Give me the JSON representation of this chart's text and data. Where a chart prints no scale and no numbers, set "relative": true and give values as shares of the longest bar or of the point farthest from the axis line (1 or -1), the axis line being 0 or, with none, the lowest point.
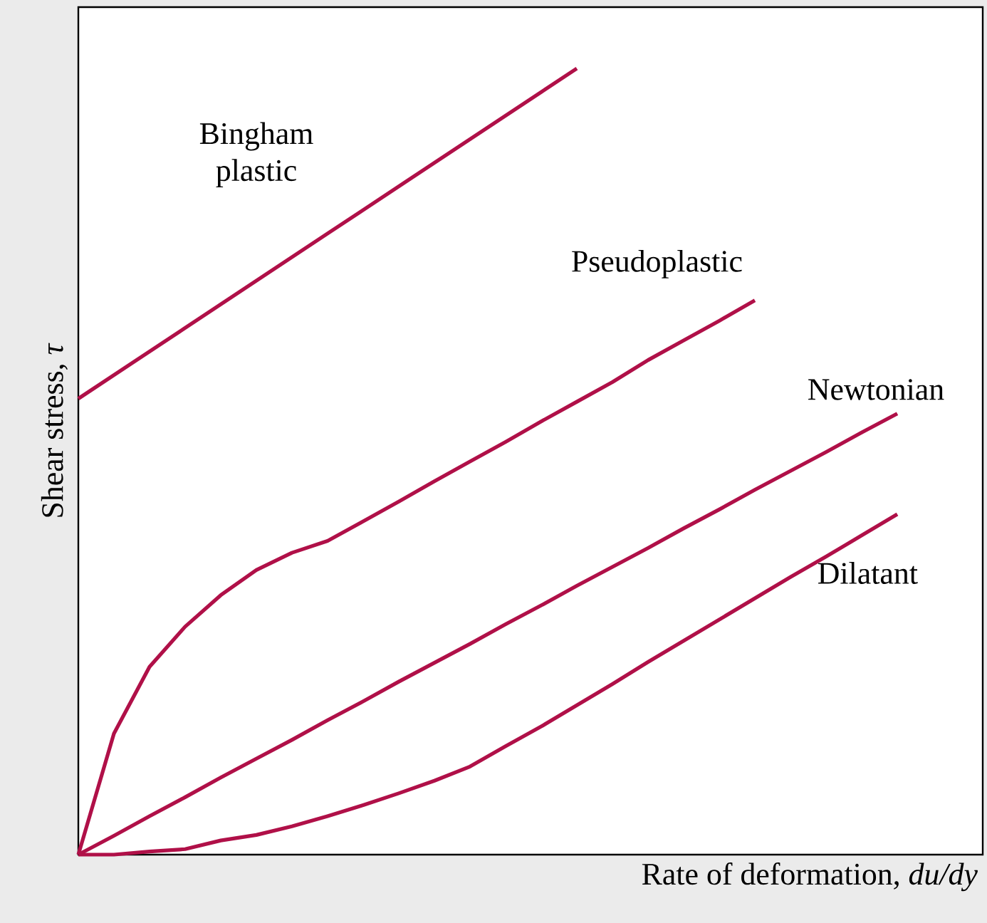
{
  "chart_data": {
    "type": "line",
    "relative": true,
    "xlabel": "Rate of deformation, *du/dy*",
    "ylabel": "Shear stress, *τ*",
    "categories": [
      null,
      null,
      null,
      null,
      null,
      null,
      null,
      null,
      null,
      null,
      null,
      null,
      null,
      null,
      null,
      null,
      null,
      null,
      null,
      null,
      null,
      null,
      null,
      null,
      null,
      null
    ],
    "series": [
      {
        "name": "Bingham plastic",
        "color": "#b01048",
        "values": [
          0.58,
          0.61,
          0.64,
          0.67,
          0.7,
          0.73,
          0.76,
          0.79,
          0.82,
          0.85,
          0.88,
          0.91,
          0.94,
          0.97,
          1.0,
          null,
          null,
          null,
          null,
          null,
          null,
          null,
          null,
          null,
          null,
          null
        ]
      },
      {
        "name": "Pseudoplastic",
        "color": "#b01048",
        "values": [
          0,
          0.154,
          0.239,
          0.29,
          0.33,
          0.362,
          0.384,
          0.399,
          0.424,
          0.449,
          0.475,
          0.5,
          0.525,
          0.551,
          0.576,
          0.601,
          0.629,
          0.654,
          0.679,
          0.705,
          null,
          null,
          null,
          null,
          null,
          null
        ]
      },
      {
        "name": "Newtonian",
        "color": "#b01048",
        "values": [
          0,
          0.024,
          0.049,
          0.073,
          0.098,
          0.122,
          0.146,
          0.171,
          0.195,
          0.22,
          0.244,
          0.268,
          0.293,
          0.317,
          0.342,
          0.366,
          0.39,
          0.415,
          0.439,
          0.464,
          0.488,
          0.512,
          0.537,
          0.561,
          null,
          null
        ]
      },
      {
        "name": "Dilatant",
        "color": "#b01048",
        "values": [
          0,
          0,
          0.004,
          0.007,
          0.018,
          0.025,
          0.036,
          0.049,
          0.063,
          0.078,
          0.094,
          0.112,
          0.138,
          0.163,
          0.19,
          0.217,
          0.245,
          0.272,
          0.299,
          0.326,
          0.353,
          0.379,
          0.406,
          0.433,
          null,
          null
        ]
      }
    ],
    "marker": "none",
    "line_style": "solid"
  }
}
